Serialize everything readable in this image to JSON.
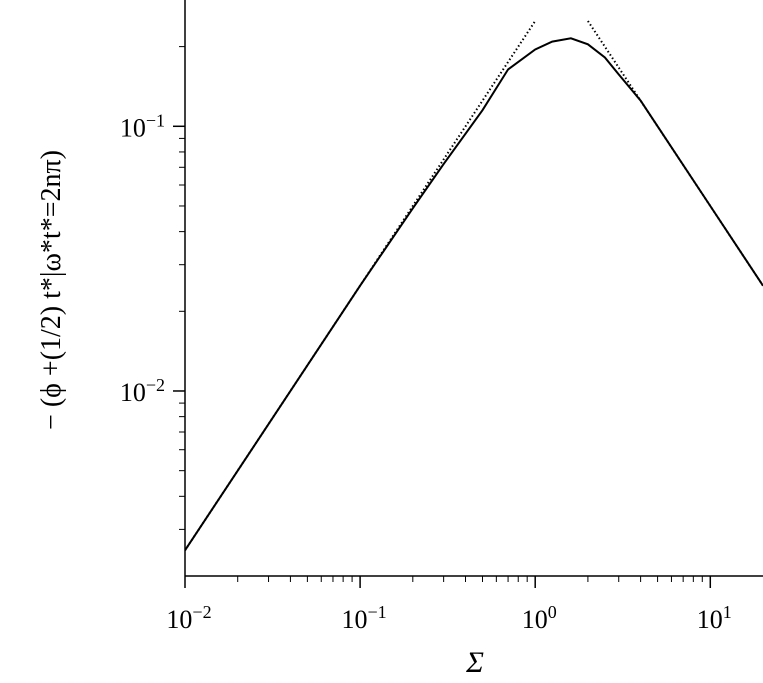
{
  "chart_data": {
    "type": "line",
    "x_label": "Σ",
    "y_label": "− (ϕ +(1/2) t*|ω*t*=2nπ)",
    "xscale": "log",
    "yscale": "log",
    "xlim": [
      0.01,
      20
    ],
    "ylim": [
      0.002,
      0.3
    ],
    "xticks": [
      {
        "value": 0.01,
        "label": "10−2"
      },
      {
        "value": 0.1,
        "label": "10−1"
      },
      {
        "value": 1,
        "label": "100"
      },
      {
        "value": 10,
        "label": "101"
      }
    ],
    "yticks": [
      {
        "value": 0.01,
        "label": "10−2"
      },
      {
        "value": 0.1,
        "label": "10−1"
      }
    ],
    "series": [
      {
        "color": "#000000",
        "linestyle": "solid",
        "x": [
          0.01,
          0.1,
          0.2,
          0.3,
          0.5,
          0.7,
          1,
          1.25,
          1.6,
          2,
          2.5,
          3,
          4,
          5,
          10,
          20
        ],
        "values": [
          0.0025,
          0.025,
          0.049,
          0.072,
          0.115,
          0.164,
          0.195,
          0.209,
          0.215,
          0.204,
          0.182,
          0.157,
          0.125,
          0.1,
          0.05,
          0.025
        ]
      },
      {
        "color": "#000000",
        "linestyle": "dotted",
        "x": [
          0.01,
          1
        ],
        "values": [
          0.0025,
          0.25
        ]
      },
      {
        "color": "#000000",
        "linestyle": "dotted",
        "x": [
          2,
          20
        ],
        "values": [
          0.25,
          0.025
        ]
      }
    ]
  }
}
